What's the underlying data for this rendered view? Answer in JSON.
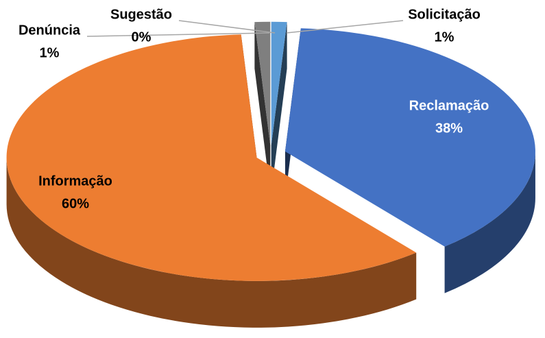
{
  "chart_data": {
    "type": "pie3d",
    "categories": [
      "Solicitação",
      "Reclamação",
      "Informação",
      "Denúncia",
      "Sugestão"
    ],
    "values": [
      1,
      38,
      60,
      1,
      0
    ],
    "value_labels": [
      "1%",
      "38%",
      "60%",
      "1%",
      "0%"
    ],
    "colors": [
      "#5b9bd5",
      "#4472c4",
      "#ed7d31",
      "#7f7f7f",
      "#ffc000"
    ]
  }
}
